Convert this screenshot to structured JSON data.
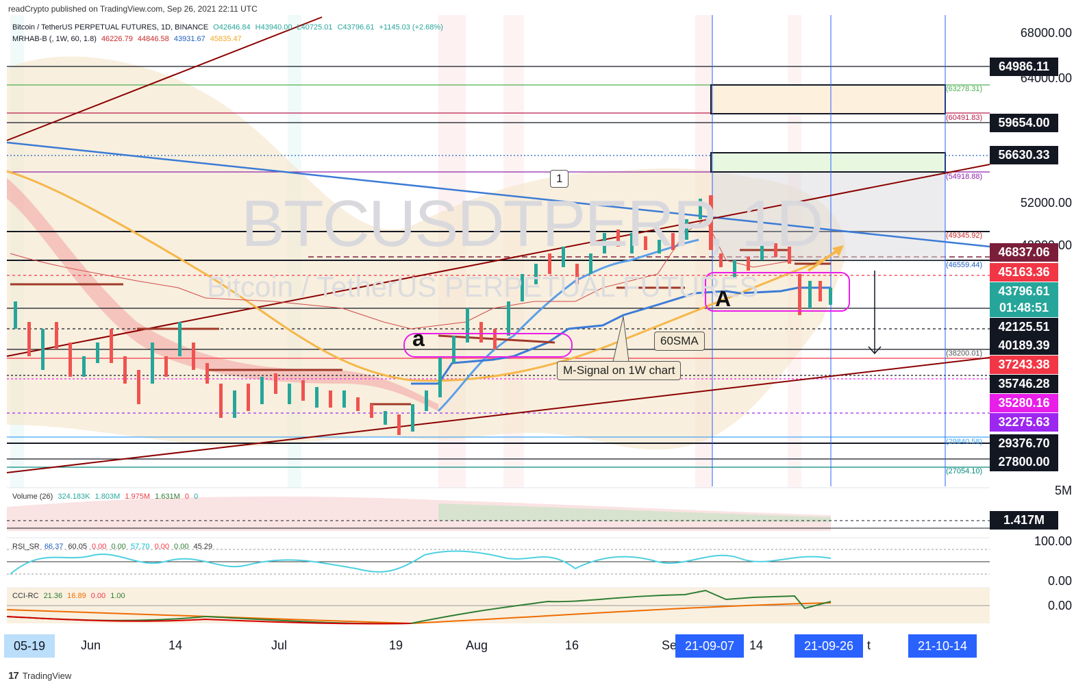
{
  "header": {
    "published": "readCrypto published on TradingView.com, Sep 26, 2021 22:11 UTC",
    "symbol": "Bitcoin / TetherUS PERPETUAL FUTURES, 1D, BINANCE",
    "o": "O42646.84",
    "h": "H43940.00",
    "l": "L40725.01",
    "c": "C43796.61",
    "change": "+1145.03 (+2.68%)",
    "indicator": "MRHAB-B (, 1W, 60, 1.8)",
    "ind_v1": "46226.79",
    "ind_v2": "44846.58",
    "ind_v3": "43931.67",
    "ind_v4": "45835.47"
  },
  "watermark": {
    "line1": "BTCUSDTPERP, 1D",
    "line2": "Bitcoin / TetherUS PERPETUAL FUTURES"
  },
  "annotations": {
    "callout_1": "1",
    "letter_a": "a",
    "letter_A": "A",
    "sma_note": "60SMA",
    "msignal_note": "M-Signal on 1W chart"
  },
  "level_labels": {
    "l1": "(63278.31)",
    "l2": "(60491.83)",
    "l3": "(54918.88)",
    "l4": "(49345.92)",
    "l5": "(46559.44)",
    "l6": "(38200.01)",
    "l7": "(29840.58)",
    "l8": "(27054.10)"
  },
  "price_axis": {
    "ticks": [
      "68000.00",
      "64000.00",
      "52000.00",
      "48000.00"
    ],
    "badges": [
      {
        "text": "64986.11",
        "color": "#131722"
      },
      {
        "text": "59654.00",
        "color": "#131722"
      },
      {
        "text": "56630.33",
        "color": "#131722"
      },
      {
        "text": "46837.06",
        "color": "#7b1e3a"
      },
      {
        "text": "45163.36",
        "color": "#f23645"
      },
      {
        "text": "43796.61",
        "color": "#26a69a"
      },
      {
        "text": "01:48:51",
        "color": "#26a69a"
      },
      {
        "text": "42125.51",
        "color": "#131722"
      },
      {
        "text": "40189.39",
        "color": "#131722"
      },
      {
        "text": "37243.38",
        "color": "#f23645"
      },
      {
        "text": "35746.28",
        "color": "#131722"
      },
      {
        "text": "35280.16",
        "color": "#e91ee9"
      },
      {
        "text": "32275.63",
        "color": "#9c27f0"
      },
      {
        "text": "29376.70",
        "color": "#131722"
      },
      {
        "text": "27800.00",
        "color": "#131722"
      }
    ]
  },
  "volume_pane": {
    "legend": "Volume (26)",
    "v1": "324.183K",
    "v2": "1.803M",
    "v3": "1.975M",
    "v4": "1.631M",
    "v5": "0",
    "v6": "0",
    "axis_top": "5M",
    "badge": "1.417M"
  },
  "rsi_pane": {
    "legend": "RSI_SR",
    "v1": "66.37",
    "v2": "60.05",
    "v3": "0.00",
    "v4": "0.00",
    "v5": "57.70",
    "v6": "0.00",
    "v7": "0.00",
    "v8": "45.29",
    "axis_top": "100.00",
    "axis_bottom": "0.00"
  },
  "cci_pane": {
    "legend": "CCI-RC",
    "v1": "21.36",
    "v2": "16.89",
    "v3": "0.00",
    "v4": "1.00",
    "axis": "0.00"
  },
  "time_axis": {
    "labels": [
      "Jun",
      "14",
      "Jul",
      "19",
      "Aug",
      "16",
      "Se",
      "14",
      "t"
    ],
    "highlights": [
      "05-19",
      "21-09-07",
      "21-09-26",
      "21-10-14"
    ]
  },
  "footer": {
    "brand": "TradingView"
  },
  "colors": {
    "up": "#26a69a",
    "down": "#ef5350",
    "accent": "#2962ff"
  },
  "chart_data": {
    "type": "line",
    "title": "BTCUSDTPERP, 1D",
    "x": [
      "2021-05-19",
      "2021-06-01",
      "2021-06-14",
      "2021-07-01",
      "2021-07-19",
      "2021-08-01",
      "2021-08-16",
      "2021-09-01",
      "2021-09-07",
      "2021-09-14",
      "2021-09-26"
    ],
    "series": [
      {
        "name": "BTCUSDTPERP",
        "values": [
          37000,
          36500,
          39000,
          34500,
          30500,
          40500,
          46500,
          48000,
          52500,
          47000,
          43796.61
        ]
      }
    ],
    "ylim": [
      26000,
      70000
    ],
    "levels": [
      68000,
      64986.11,
      63278.31,
      60491.83,
      59654,
      56630.33,
      54918.88,
      49345.92,
      46837.06,
      46559.44,
      45163.36,
      42125.51,
      40189.39,
      38200.01,
      37243.38,
      35746.28,
      35280.16,
      32275.63,
      29840.58,
      29376.7,
      27800,
      27054.1
    ]
  }
}
